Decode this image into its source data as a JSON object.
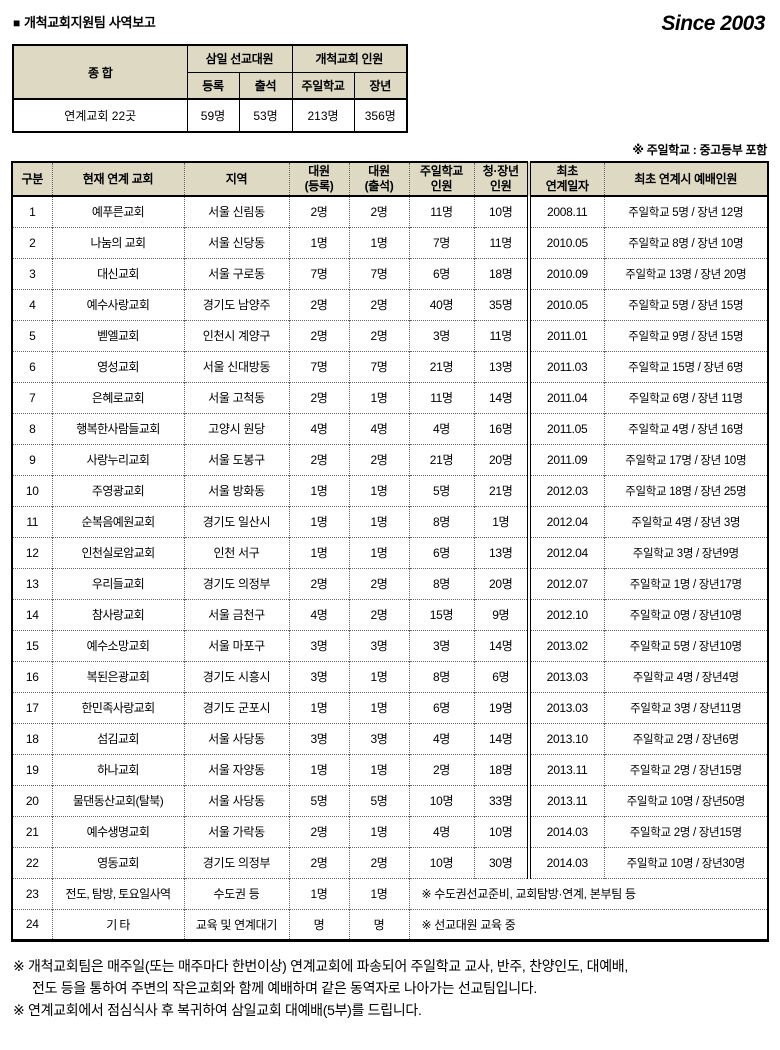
{
  "header": {
    "bullet": "■",
    "title": "개척교회지원팀 사역보고",
    "since": "Since 2003"
  },
  "summary_table": {
    "total_label": "종 합",
    "group1": "삼일 선교대원",
    "group2": "개척교회 인원",
    "subheaders": [
      "등록",
      "출석",
      "주일학교",
      "장년"
    ],
    "row_label": "연계교회 22곳",
    "row_values": [
      "59명",
      "53명",
      "213명",
      "356명"
    ]
  },
  "note_right": "※ 주일학교 : 중고등부 포함",
  "main_table": {
    "headers": {
      "no": "구분",
      "church": "현재 연계 교회",
      "region": "지역",
      "registered": "대원\n(등록)",
      "attendance": "대원\n(출석)",
      "sunday_school": "주일학교\n인원",
      "adult": "청·장년\n인원",
      "first_date": "최초\n연계일자",
      "initial_attendance": "최초 연계시 예배인원"
    },
    "rows": [
      {
        "no": "1",
        "church": "예푸른교회",
        "region": "서울 신림동",
        "reg": "2명",
        "att": "2명",
        "sunday": "11명",
        "adult": "10명",
        "date": "2008.11",
        "initial": "주일학교 5명 / 장년 12명"
      },
      {
        "no": "2",
        "church": "나눔의 교회",
        "region": "서울 신당동",
        "reg": "1명",
        "att": "1명",
        "sunday": "7명",
        "adult": "11명",
        "date": "2010.05",
        "initial": "주일학교 8명 / 장년 10명"
      },
      {
        "no": "3",
        "church": "대신교회",
        "region": "서울 구로동",
        "reg": "7명",
        "att": "7명",
        "sunday": "6명",
        "adult": "18명",
        "date": "2010.09",
        "initial": "주일학교 13명 / 장년 20명"
      },
      {
        "no": "4",
        "church": "예수사랑교회",
        "region": "경기도 남양주",
        "reg": "2명",
        "att": "2명",
        "sunday": "40명",
        "adult": "35명",
        "date": "2010.05",
        "initial": "주일학교 5명 / 장년 15명"
      },
      {
        "no": "5",
        "church": "벧엘교회",
        "region": "인천시 계양구",
        "reg": "2명",
        "att": "2명",
        "sunday": "3명",
        "adult": "11명",
        "date": "2011.01",
        "initial": "주일학교 9명 / 장년 15명"
      },
      {
        "no": "6",
        "church": "영성교회",
        "region": "서울 신대방동",
        "reg": "7명",
        "att": "7명",
        "sunday": "21명",
        "adult": "13명",
        "date": "2011.03",
        "initial": "주일학교 15명 / 장년 6명"
      },
      {
        "no": "7",
        "church": "은혜로교회",
        "region": "서울 고척동",
        "reg": "2명",
        "att": "1명",
        "sunday": "11명",
        "adult": "14명",
        "date": "2011.04",
        "initial": "주일학교 6명 / 장년 11명"
      },
      {
        "no": "8",
        "church": "행복한사람들교회",
        "region": "고양시 원당",
        "reg": "4명",
        "att": "4명",
        "sunday": "4명",
        "adult": "16명",
        "date": "2011.05",
        "initial": "주일학교 4명 / 장년 16명"
      },
      {
        "no": "9",
        "church": "사랑누리교회",
        "region": "서울 도봉구",
        "reg": "2명",
        "att": "2명",
        "sunday": "21명",
        "adult": "20명",
        "date": "2011.09",
        "initial": "주일학교 17명 / 장년 10명"
      },
      {
        "no": "10",
        "church": "주영광교회",
        "region": "서울 방화동",
        "reg": "1명",
        "att": "1명",
        "sunday": "5명",
        "adult": "21명",
        "date": "2012.03",
        "initial": "주일학교 18명 / 장년 25명"
      },
      {
        "no": "11",
        "church": "순복음예원교회",
        "region": "경기도 일산시",
        "reg": "1명",
        "att": "1명",
        "sunday": "8명",
        "adult": "1명",
        "date": "2012.04",
        "initial": "주일학교 4명 / 장년 3명"
      },
      {
        "no": "12",
        "church": "인천실로암교회",
        "region": "인천 서구",
        "reg": "1명",
        "att": "1명",
        "sunday": "6명",
        "adult": "13명",
        "date": "2012.04",
        "initial": "주일학교 3명 / 장년9명"
      },
      {
        "no": "13",
        "church": "우리들교회",
        "region": "경기도 의정부",
        "reg": "2명",
        "att": "2명",
        "sunday": "8명",
        "adult": "20명",
        "date": "2012.07",
        "initial": "주일학교 1명 / 장년17명"
      },
      {
        "no": "14",
        "church": "참사랑교회",
        "region": "서울 금천구",
        "reg": "4명",
        "att": "2명",
        "sunday": "15명",
        "adult": "9명",
        "date": "2012.10",
        "initial": "주일학교 0명 / 장년10명"
      },
      {
        "no": "15",
        "church": "예수소망교회",
        "region": "서울 마포구",
        "reg": "3명",
        "att": "3명",
        "sunday": "3명",
        "adult": "14명",
        "date": "2013.02",
        "initial": "주일학교 5명 / 장년10명"
      },
      {
        "no": "16",
        "church": "복된은광교회",
        "region": "경기도 시흥시",
        "reg": "3명",
        "att": "1명",
        "sunday": "8명",
        "adult": "6명",
        "date": "2013.03",
        "initial": "주일학교 4명 / 장년4명"
      },
      {
        "no": "17",
        "church": "한민족사랑교회",
        "region": "경기도 군포시",
        "reg": "1명",
        "att": "1명",
        "sunday": "6명",
        "adult": "19명",
        "date": "2013.03",
        "initial": "주일학교 3명 / 장년11명"
      },
      {
        "no": "18",
        "church": "섬김교회",
        "region": "서울 사당동",
        "reg": "3명",
        "att": "3명",
        "sunday": "4명",
        "adult": "14명",
        "date": "2013.10",
        "initial": "주일학교 2명 / 장년6명"
      },
      {
        "no": "19",
        "church": "하나교회",
        "region": "서울 자양동",
        "reg": "1명",
        "att": "1명",
        "sunday": "2명",
        "adult": "18명",
        "date": "2013.11",
        "initial": "주일학교 2명 / 장년15명"
      },
      {
        "no": "20",
        "church": "물댄동산교회(탈북)",
        "region": "서울 사당동",
        "reg": "5명",
        "att": "5명",
        "sunday": "10명",
        "adult": "33명",
        "date": "2013.11",
        "initial": "주일학교 10명 / 장년50명"
      },
      {
        "no": "21",
        "church": "예수생명교회",
        "region": "서울 가락동",
        "reg": "2명",
        "att": "1명",
        "sunday": "4명",
        "adult": "10명",
        "date": "2014.03",
        "initial": "주일학교 2명 / 장년15명"
      },
      {
        "no": "22",
        "church": "영동교회",
        "region": "경기도 의정부",
        "reg": "2명",
        "att": "2명",
        "sunday": "10명",
        "adult": "30명",
        "date": "2014.03",
        "initial": "주일학교 10명 / 장년30명"
      },
      {
        "no": "23",
        "church": "전도, 탐방, 토요일사역",
        "region": "수도권 등",
        "reg": "1명",
        "att": "1명",
        "note": "※ 수도권선교준비, 교회탐방·연계, 본부팀 등"
      },
      {
        "no": "24",
        "church": "기 타",
        "region": "교육 및 연계대기",
        "reg": "명",
        "att": "명",
        "note": "※ 선교대원 교육 중"
      }
    ]
  },
  "footnotes": [
    {
      "text": "※ 개척교회팀은 매주일(또는 매주마다 한번이상) 연계교회에 파송되어 주일학교 교사, 반주, 찬양인도, 대예배,",
      "indent": false
    },
    {
      "text": "전도 등을 통하여 주변의 작은교회와 함께 예배하며 같은 동역자로 나아가는 선교팀입니다.",
      "indent": true
    },
    {
      "text": "※ 연계교회에서 점심식사 후 복귀하여 삼일교회 대예배(5부)를 드립니다.",
      "indent": false
    }
  ],
  "colors": {
    "header_bg": "#DDD9C3",
    "border": "#000000",
    "page_bg": "#FFFFFF"
  }
}
